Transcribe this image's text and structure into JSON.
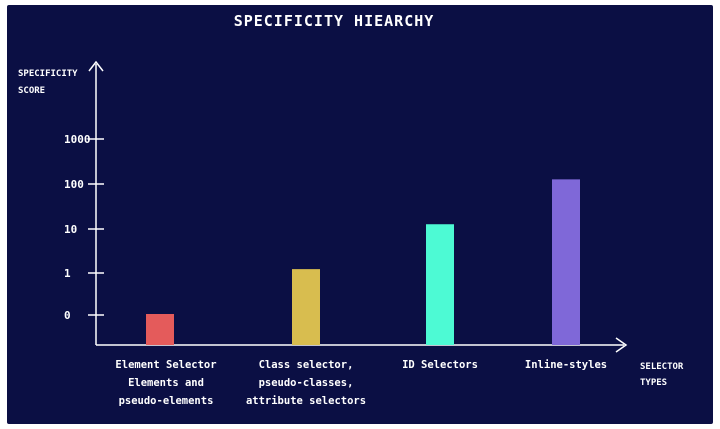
{
  "chart_data": {
    "type": "bar",
    "title": "SPECIFICITY HIEARCHY",
    "ylabel": [
      "SPECIFICITY",
      "SCORE"
    ],
    "xlabel": [
      "SELECTOR",
      "TYPES"
    ],
    "y_ticks": [
      "0",
      "1",
      "10",
      "100",
      "1000"
    ],
    "categories": [
      [
        "Element Selector",
        "Elements and",
        "pseudo-elements"
      ],
      [
        "Class selector,",
        "pseudo-classes,",
        "attribute selectors"
      ],
      [
        "ID Selectors"
      ],
      [
        "Inline-styles"
      ]
    ],
    "values": [
      1,
      10,
      100,
      1000
    ],
    "colors": [
      "#e45b5b",
      "#d8bd4f",
      "#4dfad4",
      "#7f68d8"
    ],
    "axis_color": "#ffffff",
    "grid": false,
    "legend": "none"
  }
}
